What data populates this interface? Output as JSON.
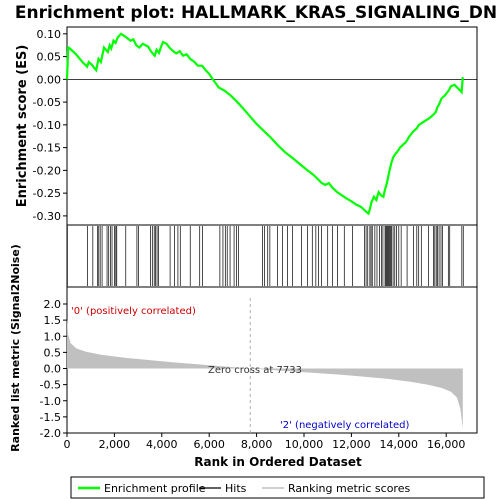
{
  "chart_data": {
    "type": "line",
    "title": "Enrichment plot: HALLMARK_KRAS_SIGNALING_DN",
    "es_panel": {
      "ylabel": "Enrichment score (ES)",
      "ylim": [
        -0.32,
        0.115
      ],
      "yticks": [
        0.1,
        0.05,
        0.0,
        -0.05,
        -0.1,
        -0.15,
        -0.2,
        -0.25,
        -0.3
      ],
      "ytick_labels": [
        "0.10",
        "0.05",
        "0.00",
        "-0.05",
        "-0.10",
        "-0.15",
        "-0.20",
        "-0.25",
        "-0.30"
      ],
      "color": "#00ff00",
      "series": {
        "name": "Enrichment profile",
        "x": [
          0,
          50,
          120,
          380,
          650,
          850,
          920,
          1050,
          1150,
          1230,
          1330,
          1430,
          1560,
          1720,
          1800,
          1870,
          1960,
          2050,
          2140,
          2280,
          2480,
          2680,
          2800,
          2920,
          3050,
          3200,
          3420,
          3560,
          3700,
          3780,
          3880,
          3960,
          4050,
          4200,
          4350,
          4480,
          4610,
          4760,
          4890,
          5050,
          5200,
          5380,
          5520,
          5700,
          5850,
          6000,
          6150,
          6400,
          6650,
          6900,
          7150,
          7400,
          7700,
          8000,
          8300,
          8600,
          8900,
          9200,
          9500,
          9800,
          10100,
          10400,
          10600,
          10750,
          10900,
          11050,
          11200,
          11400,
          11600,
          11800,
          12000,
          12200,
          12400,
          12550,
          12650,
          12720,
          12780,
          12850,
          12950,
          13050,
          13150,
          13250,
          13350,
          13420,
          13500,
          13560,
          13620,
          13680,
          13760,
          13840,
          13950,
          14050,
          14150,
          14300,
          14450,
          14600,
          14750,
          14850,
          15000,
          15150,
          15300,
          15450,
          15560,
          15620,
          15700,
          15800,
          15950,
          16100,
          16200,
          16350,
          16500,
          16650,
          16700
        ],
        "y": [
          0.0,
          0.07,
          0.068,
          0.055,
          0.038,
          0.028,
          0.038,
          0.032,
          0.025,
          0.02,
          0.045,
          0.038,
          0.07,
          0.06,
          0.075,
          0.068,
          0.085,
          0.08,
          0.092,
          0.1,
          0.093,
          0.085,
          0.088,
          0.075,
          0.07,
          0.078,
          0.072,
          0.06,
          0.052,
          0.065,
          0.058,
          0.07,
          0.082,
          0.078,
          0.068,
          0.062,
          0.057,
          0.062,
          0.052,
          0.055,
          0.045,
          0.038,
          0.03,
          0.03,
          0.02,
          0.012,
          0.0,
          -0.018,
          -0.025,
          -0.035,
          -0.048,
          -0.062,
          -0.08,
          -0.098,
          -0.113,
          -0.128,
          -0.145,
          -0.16,
          -0.172,
          -0.185,
          -0.198,
          -0.21,
          -0.22,
          -0.228,
          -0.232,
          -0.228,
          -0.238,
          -0.248,
          -0.255,
          -0.262,
          -0.268,
          -0.275,
          -0.28,
          -0.287,
          -0.292,
          -0.295,
          -0.285,
          -0.27,
          -0.258,
          -0.265,
          -0.248,
          -0.255,
          -0.258,
          -0.242,
          -0.228,
          -0.212,
          -0.198,
          -0.185,
          -0.172,
          -0.165,
          -0.158,
          -0.15,
          -0.145,
          -0.138,
          -0.125,
          -0.115,
          -0.108,
          -0.1,
          -0.095,
          -0.09,
          -0.085,
          -0.078,
          -0.072,
          -0.062,
          -0.055,
          -0.042,
          -0.035,
          -0.025,
          -0.015,
          -0.012,
          -0.02,
          -0.028,
          0.005
        ]
      },
      "zero_line": true
    },
    "hits_panel": {
      "legend_label": "Hits",
      "hit_positions": [
        15,
        870,
        1090,
        1280,
        1340,
        1400,
        1480,
        1690,
        1760,
        1840,
        1900,
        2000,
        2060,
        2100,
        2480,
        2950,
        3020,
        3520,
        3600,
        3680,
        3740,
        3800,
        3860,
        4350,
        4540,
        4680,
        4780,
        5200,
        5600,
        5720,
        6450,
        6580,
        6680,
        6760,
        6880,
        7050,
        7150,
        7230,
        8250,
        8330,
        8470,
        8560,
        8880,
        9100,
        9300,
        9520,
        9900,
        10150,
        10350,
        10500,
        10610,
        10740,
        11000,
        11200,
        11420,
        11700,
        12050,
        12550,
        12620,
        12690,
        12780,
        12830,
        12880,
        12990,
        13080,
        13180,
        13270,
        13330,
        13420,
        13460,
        13500,
        13540,
        13580,
        13620,
        13660,
        13700,
        13760,
        13830,
        13900,
        14000,
        14100,
        14350,
        14620,
        14760,
        14840,
        14950,
        15250,
        15460,
        15520,
        15580,
        15640,
        15700,
        15780,
        15850,
        16090,
        16150,
        16660,
        16720
      ]
    },
    "heat_bar": {
      "colors": [
        "#ff0000",
        "#ff4040",
        "#ff8080",
        "#ffb0d0",
        "#ffe0f0",
        "#e0e0ff",
        "#b0b0ff",
        "#7070ff",
        "#4040f0",
        "#2020d0",
        "#0000c0"
      ],
      "stops": [
        0,
        1500,
        3000,
        4600,
        6100,
        7700,
        9300,
        11300,
        12800,
        14300,
        15600,
        16800
      ]
    },
    "metric_panel": {
      "ylabel": "Ranked list metric (Signal2Noise)",
      "xlabel": "Rank in Ordered Dataset",
      "ylim": [
        -2.0,
        2.0
      ],
      "yticks": [
        2.0,
        1.5,
        1.0,
        0.5,
        0.0,
        -0.5,
        -1.0,
        -1.5,
        -2.0
      ],
      "ytick_labels": [
        "2.0",
        "1.5",
        "1.0",
        "0.5",
        "0.0",
        "-0.5",
        "-1.0",
        "-1.5",
        "-2.0"
      ],
      "xlim": [
        0,
        17300
      ],
      "xticks": [
        0,
        2000,
        4000,
        6000,
        8000,
        10000,
        12000,
        14000,
        16000
      ],
      "xtick_labels": [
        "0",
        "2,000",
        "4,000",
        "6,000",
        "8,000",
        "10,000",
        "12,000",
        "14,000",
        "16,000"
      ],
      "fill_color": "#c0c0c0",
      "metric_x": [
        0,
        50,
        150,
        400,
        800,
        1500,
        2500,
        3500,
        4500,
        5500,
        6500,
        7733,
        8500,
        9500,
        10500,
        11500,
        12500,
        13500,
        14500,
        15200,
        15800,
        16200,
        16450,
        16600,
        16700
      ],
      "metric_y": [
        1.55,
        1.05,
        0.78,
        0.62,
        0.52,
        0.42,
        0.33,
        0.26,
        0.19,
        0.13,
        0.07,
        0.0,
        -0.04,
        -0.09,
        -0.14,
        -0.19,
        -0.25,
        -0.32,
        -0.41,
        -0.5,
        -0.6,
        -0.72,
        -0.9,
        -1.25,
        -1.85
      ],
      "zero_cross_label": "Zero cross at 7733",
      "zero_cross_x": 7733,
      "pos_label": "'0' (positively correlated)",
      "neg_label": "'2' (negatively correlated)",
      "pos_label_color": "#cc0000",
      "neg_label_color": "#0000cc"
    },
    "legend": {
      "items": [
        {
          "label": "Enrichment profile",
          "color": "#00ff00"
        },
        {
          "label": "Hits",
          "color": "#000000"
        },
        {
          "label": "Ranking metric scores",
          "color": "#c0c0c0"
        }
      ]
    }
  }
}
